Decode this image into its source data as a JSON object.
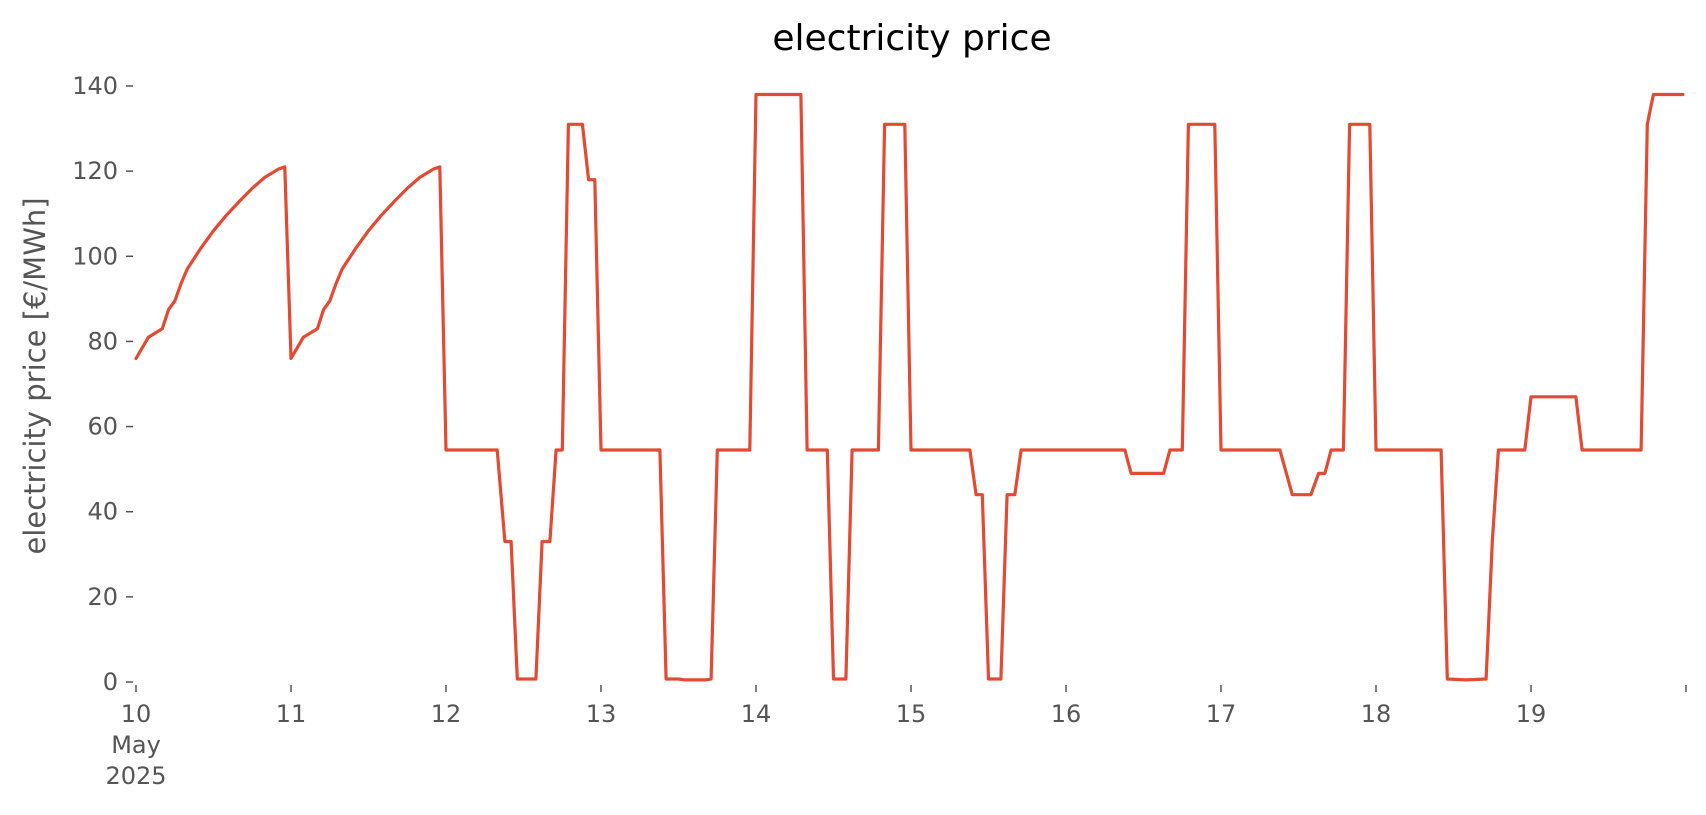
{
  "chart_data": {
    "type": "line",
    "title": "electricity price",
    "xlabel": "",
    "ylabel": "electricity price [€/MWh]",
    "x_unit": "day",
    "xlim": [
      10,
      19.98
    ],
    "ylim": [
      0,
      140
    ],
    "grid": false,
    "legend": "none",
    "y_ticks": [
      0,
      20,
      40,
      60,
      80,
      100,
      120,
      140
    ],
    "x_ticks": [
      {
        "value": 10,
        "lines": [
          "10",
          "May",
          "2025"
        ]
      },
      {
        "value": 11,
        "lines": [
          "11"
        ]
      },
      {
        "value": 12,
        "lines": [
          "12"
        ]
      },
      {
        "value": 13,
        "lines": [
          "13"
        ]
      },
      {
        "value": 14,
        "lines": [
          "14"
        ]
      },
      {
        "value": 15,
        "lines": [
          "15"
        ]
      },
      {
        "value": 16,
        "lines": [
          "16"
        ]
      },
      {
        "value": 17,
        "lines": [
          "17"
        ]
      },
      {
        "value": 18,
        "lines": [
          "18"
        ]
      },
      {
        "value": 19,
        "lines": [
          "19"
        ]
      },
      {
        "value": 20,
        "lines": [
          ""
        ]
      }
    ],
    "series": [
      {
        "color": "#e24a33",
        "points": [
          [
            10.0,
            76
          ],
          [
            10.08,
            81
          ],
          [
            10.17,
            83
          ],
          [
            10.21,
            87.5
          ],
          [
            10.25,
            89.5
          ],
          [
            10.29,
            93.5
          ],
          [
            10.33,
            97
          ],
          [
            10.42,
            102
          ],
          [
            10.5,
            106
          ],
          [
            10.58,
            109.5
          ],
          [
            10.67,
            113
          ],
          [
            10.75,
            116
          ],
          [
            10.83,
            118.5
          ],
          [
            10.92,
            120.5
          ],
          [
            10.96,
            121
          ],
          [
            11.0,
            76
          ],
          [
            11.08,
            81
          ],
          [
            11.17,
            83
          ],
          [
            11.21,
            87.5
          ],
          [
            11.25,
            89.5
          ],
          [
            11.29,
            93.5
          ],
          [
            11.33,
            97
          ],
          [
            11.42,
            102
          ],
          [
            11.5,
            106
          ],
          [
            11.58,
            109.5
          ],
          [
            11.67,
            113
          ],
          [
            11.75,
            116
          ],
          [
            11.83,
            118.5
          ],
          [
            11.92,
            120.5
          ],
          [
            11.96,
            121
          ],
          [
            12.0,
            54.5
          ],
          [
            12.33,
            54.5
          ],
          [
            12.38,
            33
          ],
          [
            12.42,
            33
          ],
          [
            12.46,
            0.7
          ],
          [
            12.58,
            0.7
          ],
          [
            12.62,
            33
          ],
          [
            12.67,
            33
          ],
          [
            12.71,
            54.5
          ],
          [
            12.75,
            54.5
          ],
          [
            12.79,
            131
          ],
          [
            12.88,
            131
          ],
          [
            12.92,
            118
          ],
          [
            12.96,
            118
          ],
          [
            13.0,
            54.5
          ],
          [
            13.38,
            54.5
          ],
          [
            13.42,
            0.7
          ],
          [
            13.5,
            0.7
          ],
          [
            13.54,
            0.5
          ],
          [
            13.67,
            0.5
          ],
          [
            13.71,
            0.7
          ],
          [
            13.75,
            54.5
          ],
          [
            13.96,
            54.5
          ],
          [
            14.0,
            138
          ],
          [
            14.29,
            138
          ],
          [
            14.33,
            54.5
          ],
          [
            14.46,
            54.5
          ],
          [
            14.5,
            0.7
          ],
          [
            14.58,
            0.7
          ],
          [
            14.62,
            54.5
          ],
          [
            14.79,
            54.5
          ],
          [
            14.83,
            131
          ],
          [
            14.96,
            131
          ],
          [
            15.0,
            54.5
          ],
          [
            15.38,
            54.5
          ],
          [
            15.42,
            44
          ],
          [
            15.46,
            44
          ],
          [
            15.5,
            0.7
          ],
          [
            15.58,
            0.7
          ],
          [
            15.62,
            44
          ],
          [
            15.67,
            44
          ],
          [
            15.71,
            54.5
          ],
          [
            16.38,
            54.5
          ],
          [
            16.42,
            49
          ],
          [
            16.63,
            49
          ],
          [
            16.67,
            54.5
          ],
          [
            16.75,
            54.5
          ],
          [
            16.79,
            131
          ],
          [
            16.96,
            131
          ],
          [
            17.0,
            54.5
          ],
          [
            17.38,
            54.5
          ],
          [
            17.46,
            44
          ],
          [
            17.58,
            44
          ],
          [
            17.63,
            49
          ],
          [
            17.67,
            49
          ],
          [
            17.71,
            54.5
          ],
          [
            17.79,
            54.5
          ],
          [
            17.83,
            131
          ],
          [
            17.96,
            131
          ],
          [
            18.0,
            54.5
          ],
          [
            18.42,
            54.5
          ],
          [
            18.46,
            0.7
          ],
          [
            18.58,
            0.5
          ],
          [
            18.71,
            0.7
          ],
          [
            18.75,
            33
          ],
          [
            18.79,
            54.5
          ],
          [
            18.96,
            54.5
          ],
          [
            19.0,
            67
          ],
          [
            19.29,
            67
          ],
          [
            19.33,
            54.5
          ],
          [
            19.71,
            54.5
          ],
          [
            19.75,
            131
          ],
          [
            19.79,
            138
          ],
          [
            19.98,
            138
          ]
        ]
      }
    ]
  }
}
